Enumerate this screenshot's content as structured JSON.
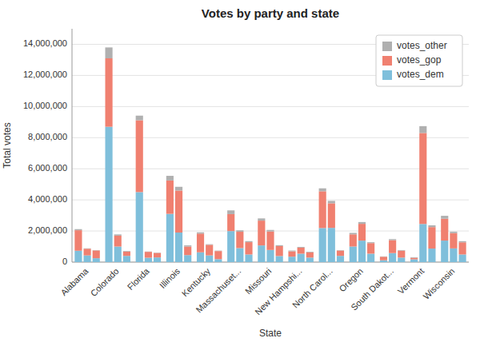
{
  "chart_data": {
    "type": "bar",
    "stacked": true,
    "title": "Votes by party and state",
    "x_label": "State",
    "y_label": "Total votes",
    "categories": [
      null,
      "Alabama",
      null,
      null,
      "Colorado",
      null,
      null,
      "Florida",
      null,
      null,
      "Illinois",
      null,
      null,
      "Kentucky",
      null,
      null,
      "Massachuset...",
      null,
      null,
      "Missouri",
      null,
      null,
      "New Hampshi...",
      null,
      null,
      "North Carol...",
      null,
      null,
      "Oregon",
      null,
      null,
      "South Dakot...",
      null,
      null,
      "Vermont",
      null,
      null,
      "Wisconsin",
      null
    ],
    "series": [
      {
        "name": "votes_dem",
        "color": "#7fbfdb",
        "values": [
          729547,
          430000,
          250000,
          8700000,
          1000000,
          400000,
          4500000,
          280000,
          300000,
          3100000,
          1900000,
          450000,
          629000,
          430000,
          190000,
          1995000,
          900000,
          490000,
          1071000,
          780000,
          390000,
          348000,
          540000,
          290000,
          2189000,
          2200000,
          400000,
          1002000,
          1380000,
          540000,
          117000,
          580000,
          290000,
          179000,
          2450000,
          870000,
          1383000,
          880000,
          490000
        ]
      },
      {
        "name": "votes_gop",
        "color": "#f08070",
        "values": [
          1318255,
          430000,
          500000,
          4400000,
          700000,
          270000,
          4618000,
          380000,
          290000,
          2146000,
          2700000,
          550000,
          1203000,
          680000,
          520000,
          1091000,
          1050000,
          790000,
          1595000,
          1190000,
          640000,
          346000,
          390000,
          340000,
          2363000,
          1580000,
          340000,
          782000,
          1080000,
          680000,
          228000,
          830000,
          445000,
          95000,
          5850000,
          1380000,
          1405000,
          980000,
          780000
        ]
      },
      {
        "name": "votes_other",
        "color": "#b0b0b0",
        "values": [
          72081,
          25000,
          20000,
          700000,
          80000,
          40000,
          297000,
          20000,
          22000,
          299000,
          240000,
          75000,
          82000,
          38000,
          28000,
          239000,
          95000,
          68000,
          143000,
          98000,
          58000,
          50000,
          48000,
          38000,
          190000,
          155000,
          28000,
          94000,
          115000,
          58000,
          21000,
          67000,
          38000,
          41000,
          440000,
          115000,
          188000,
          95000,
          75000
        ]
      }
    ],
    "ylim": [
      0,
      15000000
    ],
    "yticks": [
      0,
      {
        "value": 2000000,
        "label": "2,000,000"
      },
      {
        "value": 4000000,
        "label": "4,000,000"
      },
      {
        "value": 6000000,
        "label": "6,000,000"
      },
      {
        "value": 8000000,
        "label": "8,000,000"
      },
      {
        "value": 10000000,
        "label": "10,000,000"
      },
      {
        "value": 12000000,
        "label": "12,000,000"
      },
      {
        "value": 14000000,
        "label": "14,000,000"
      }
    ],
    "grid": true,
    "legend": "upper right"
  }
}
